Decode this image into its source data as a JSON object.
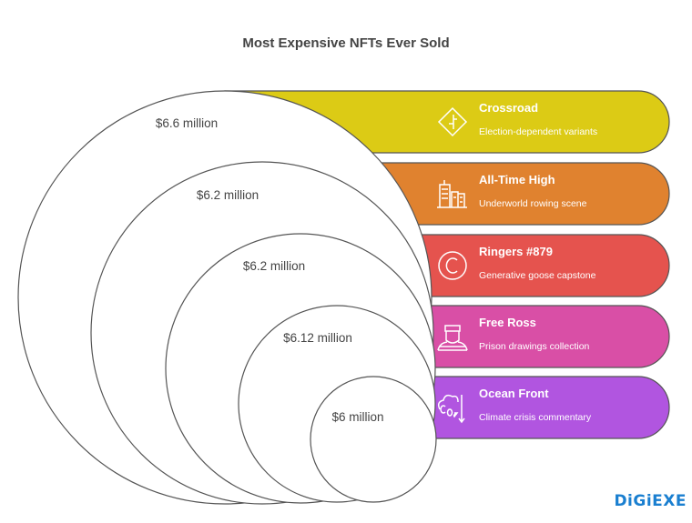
{
  "title": "Most Expensive NFTs Ever Sold",
  "items": [
    {
      "name": "Crossroad",
      "description": "Election-dependent variants",
      "price": "$6.6 million",
      "icon": "crossroad-sign-icon",
      "color": "#dccb15"
    },
    {
      "name": "All-Time High",
      "description": "Underworld rowing scene",
      "price": "$6.2 million",
      "icon": "buildings-icon",
      "color": "#e0822f"
    },
    {
      "name": "Ringers #879",
      "description": "Generative goose capstone",
      "price": "$6.2 million",
      "icon": "copyright-icon",
      "color": "#e5534e"
    },
    {
      "name": "Free Ross",
      "description": "Prison drawings collection",
      "price": "$6.12 million",
      "icon": "prisoner-icon",
      "color": "#d94fa6"
    },
    {
      "name": "Ocean Front",
      "description": "Climate crisis commentary",
      "price": "$6 million",
      "icon": "co2-down-icon",
      "color": "#b155e0"
    }
  ],
  "logo": "DiGiEXE"
}
